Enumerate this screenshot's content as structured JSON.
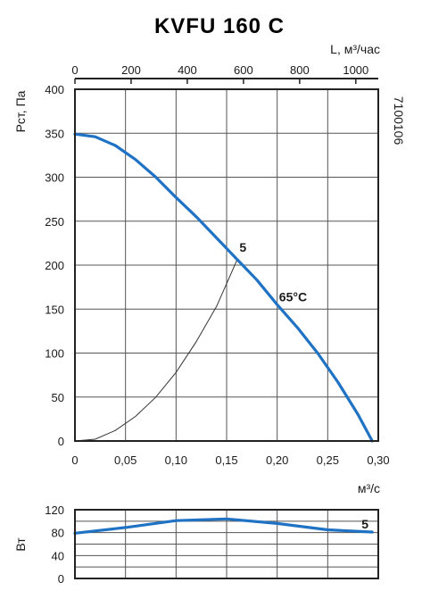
{
  "chart_data": [
    {
      "type": "line",
      "title": "KVFU 160 C",
      "code": "7100106",
      "xlabel": "м³/с",
      "ylabel": "Рст, Па",
      "xlim": [
        0,
        0.3
      ],
      "ylim": [
        0,
        400
      ],
      "x_ticks": [
        "0",
        "0,05",
        "0,10",
        "0,15",
        "0,20",
        "0,25",
        "0,30"
      ],
      "y_ticks": [
        "0",
        "50",
        "100",
        "150",
        "200",
        "250",
        "300",
        "350",
        "400"
      ],
      "top_axis": {
        "label": "L, м³/час",
        "lim": [
          0,
          1080
        ],
        "ticks": [
          "0",
          "200",
          "400",
          "600",
          "800",
          "1000"
        ]
      },
      "grid": true,
      "series": [
        {
          "name": "65°С",
          "color": "#1f72c4",
          "x": [
            0.0,
            0.02,
            0.04,
            0.06,
            0.08,
            0.1,
            0.12,
            0.14,
            0.16,
            0.18,
            0.2,
            0.22,
            0.24,
            0.26,
            0.28,
            0.294
          ],
          "y": [
            349,
            346,
            336,
            320,
            300,
            277,
            255,
            231,
            207,
            183,
            155,
            129,
            100,
            67,
            30,
            0
          ]
        },
        {
          "name": "5",
          "x": [
            0.0,
            0.02,
            0.04,
            0.06,
            0.08,
            0.1,
            0.12,
            0.14,
            0.16
          ],
          "y": [
            0,
            2,
            12,
            28,
            50,
            78,
            113,
            153,
            205
          ]
        }
      ]
    },
    {
      "type": "line",
      "ylabel": "Вт",
      "ylim": [
        0,
        120
      ],
      "y_ticks": [
        "0",
        "40",
        "80",
        "120"
      ],
      "xlim": [
        0,
        0.3
      ],
      "grid": true,
      "series": [
        {
          "name": "5",
          "color": "#1f72c4",
          "x": [
            0.0,
            0.05,
            0.1,
            0.15,
            0.2,
            0.25,
            0.294
          ],
          "y": [
            79,
            89,
            101,
            104,
            96,
            85,
            81
          ]
        }
      ]
    }
  ]
}
